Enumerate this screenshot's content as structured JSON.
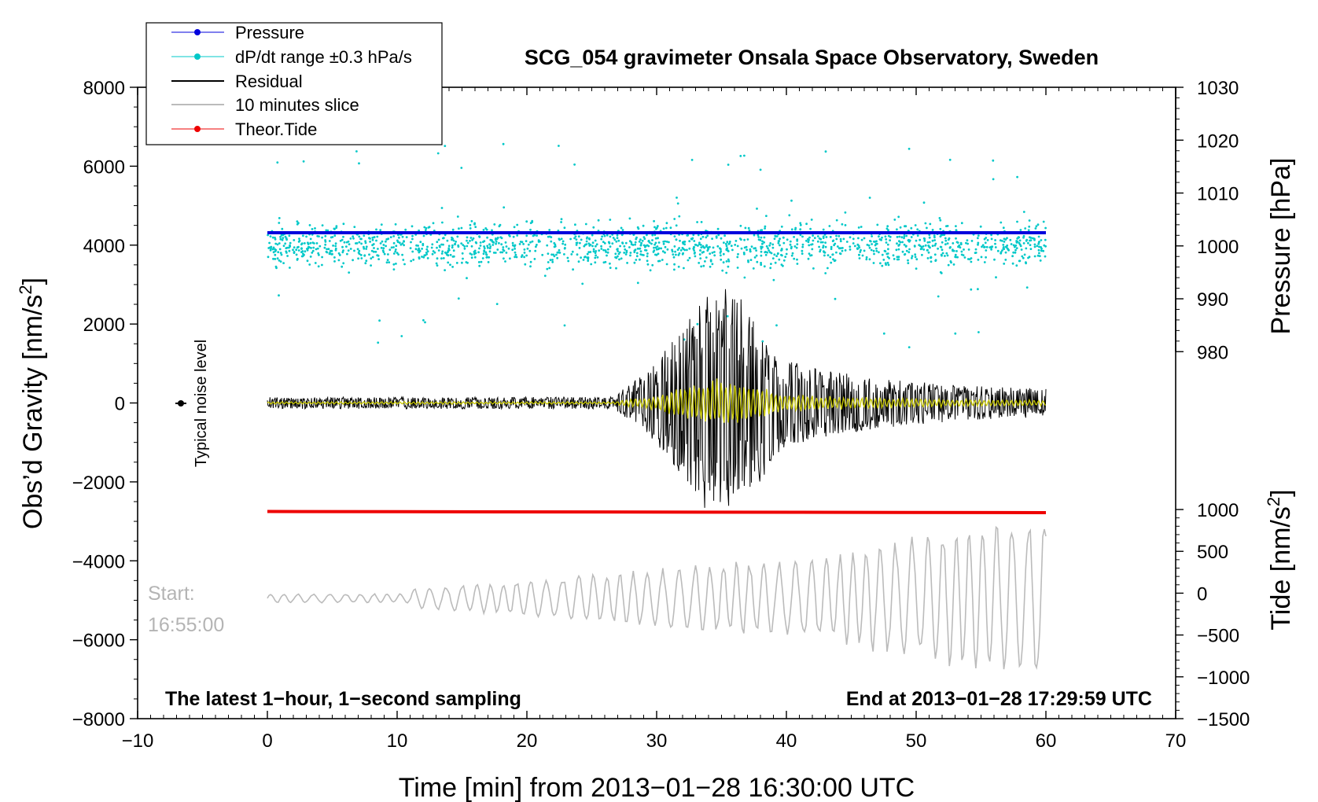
{
  "chart_data": {
    "type": "line",
    "title": "SCG_054 gravimeter Onsala Space Observatory, Sweden",
    "xlabel": "Time [min] from 2013−01−28 16:30:00 UTC",
    "xlim": [
      -10,
      70
    ],
    "x_ticks": [
      "−10",
      "0",
      "10",
      "20",
      "30",
      "40",
      "50",
      "60",
      "70"
    ],
    "left_axis": {
      "label_main": "Obs’d Gravity [nm/s",
      "label_sup": "2",
      "label_end": "]",
      "ylim": [
        -8000,
        8000
      ],
      "ticks": [
        "8000",
        "6000",
        "4000",
        "2000",
        "0",
        "−2000",
        "−4000",
        "−6000",
        "−8000"
      ]
    },
    "pressure_axis": {
      "label": "Pressure [hPa]",
      "ticks": [
        "1030",
        "1020",
        "1010",
        "1000",
        "990",
        "980"
      ]
    },
    "tide_axis": {
      "label_main": "Tide [nm/s",
      "label_sup": "2",
      "label_end": "]",
      "ticks": [
        "1000",
        "500",
        "0",
        "−500",
        "−1000",
        "−1500"
      ]
    },
    "legend": {
      "position": "top-left",
      "entries": [
        {
          "label": "Pressure",
          "color": "#0000dd"
        },
        {
          "label": "dP/dt range ±0.3 hPa/s",
          "color": "#00c8c8"
        },
        {
          "label": "Residual",
          "color": "#000000"
        },
        {
          "label": "10 minutes slice",
          "color": "#bbbbbb"
        },
        {
          "label": "Theor.Tide",
          "color": "#ee0000"
        }
      ]
    },
    "series": [
      {
        "name": "Pressure",
        "unit": "hPa",
        "x": [
          0,
          60
        ],
        "values": [
          1002.5,
          1002.5
        ],
        "color": "#0000dd"
      },
      {
        "name": "dP/dt range ±0.3 hPa/s",
        "unit": "nm/s2 (plotted)",
        "center": 4000,
        "spread": 500,
        "color": "#00c8c8"
      },
      {
        "name": "Residual",
        "unit": "nm/s2",
        "x_range": [
          0,
          60
        ],
        "quiet_amplitude": 150,
        "peak_amplitude": 2800,
        "peak_time": 35,
        "color": "#000000"
      },
      {
        "name": "Residual (filtered)",
        "unit": "nm/s2",
        "x_range": [
          0,
          60
        ],
        "color": "#c8c800"
      },
      {
        "name": "Theor.Tide",
        "unit": "nm/s2",
        "x": [
          0,
          60
        ],
        "values": [
          -2750,
          -2780
        ],
        "color": "#ee0000"
      },
      {
        "name": "10 minutes slice",
        "unit": "nm/s2 (plotted)",
        "center": -4950,
        "color": "#bbbbbb"
      }
    ],
    "annotations": {
      "noise_label": "Typical noise level",
      "start_label": "Start:",
      "start_time": "16:55:00",
      "bottom_left": "The latest 1−hour, 1−second sampling",
      "bottom_right": "End at 2013−01−28 17:29:59 UTC"
    }
  }
}
